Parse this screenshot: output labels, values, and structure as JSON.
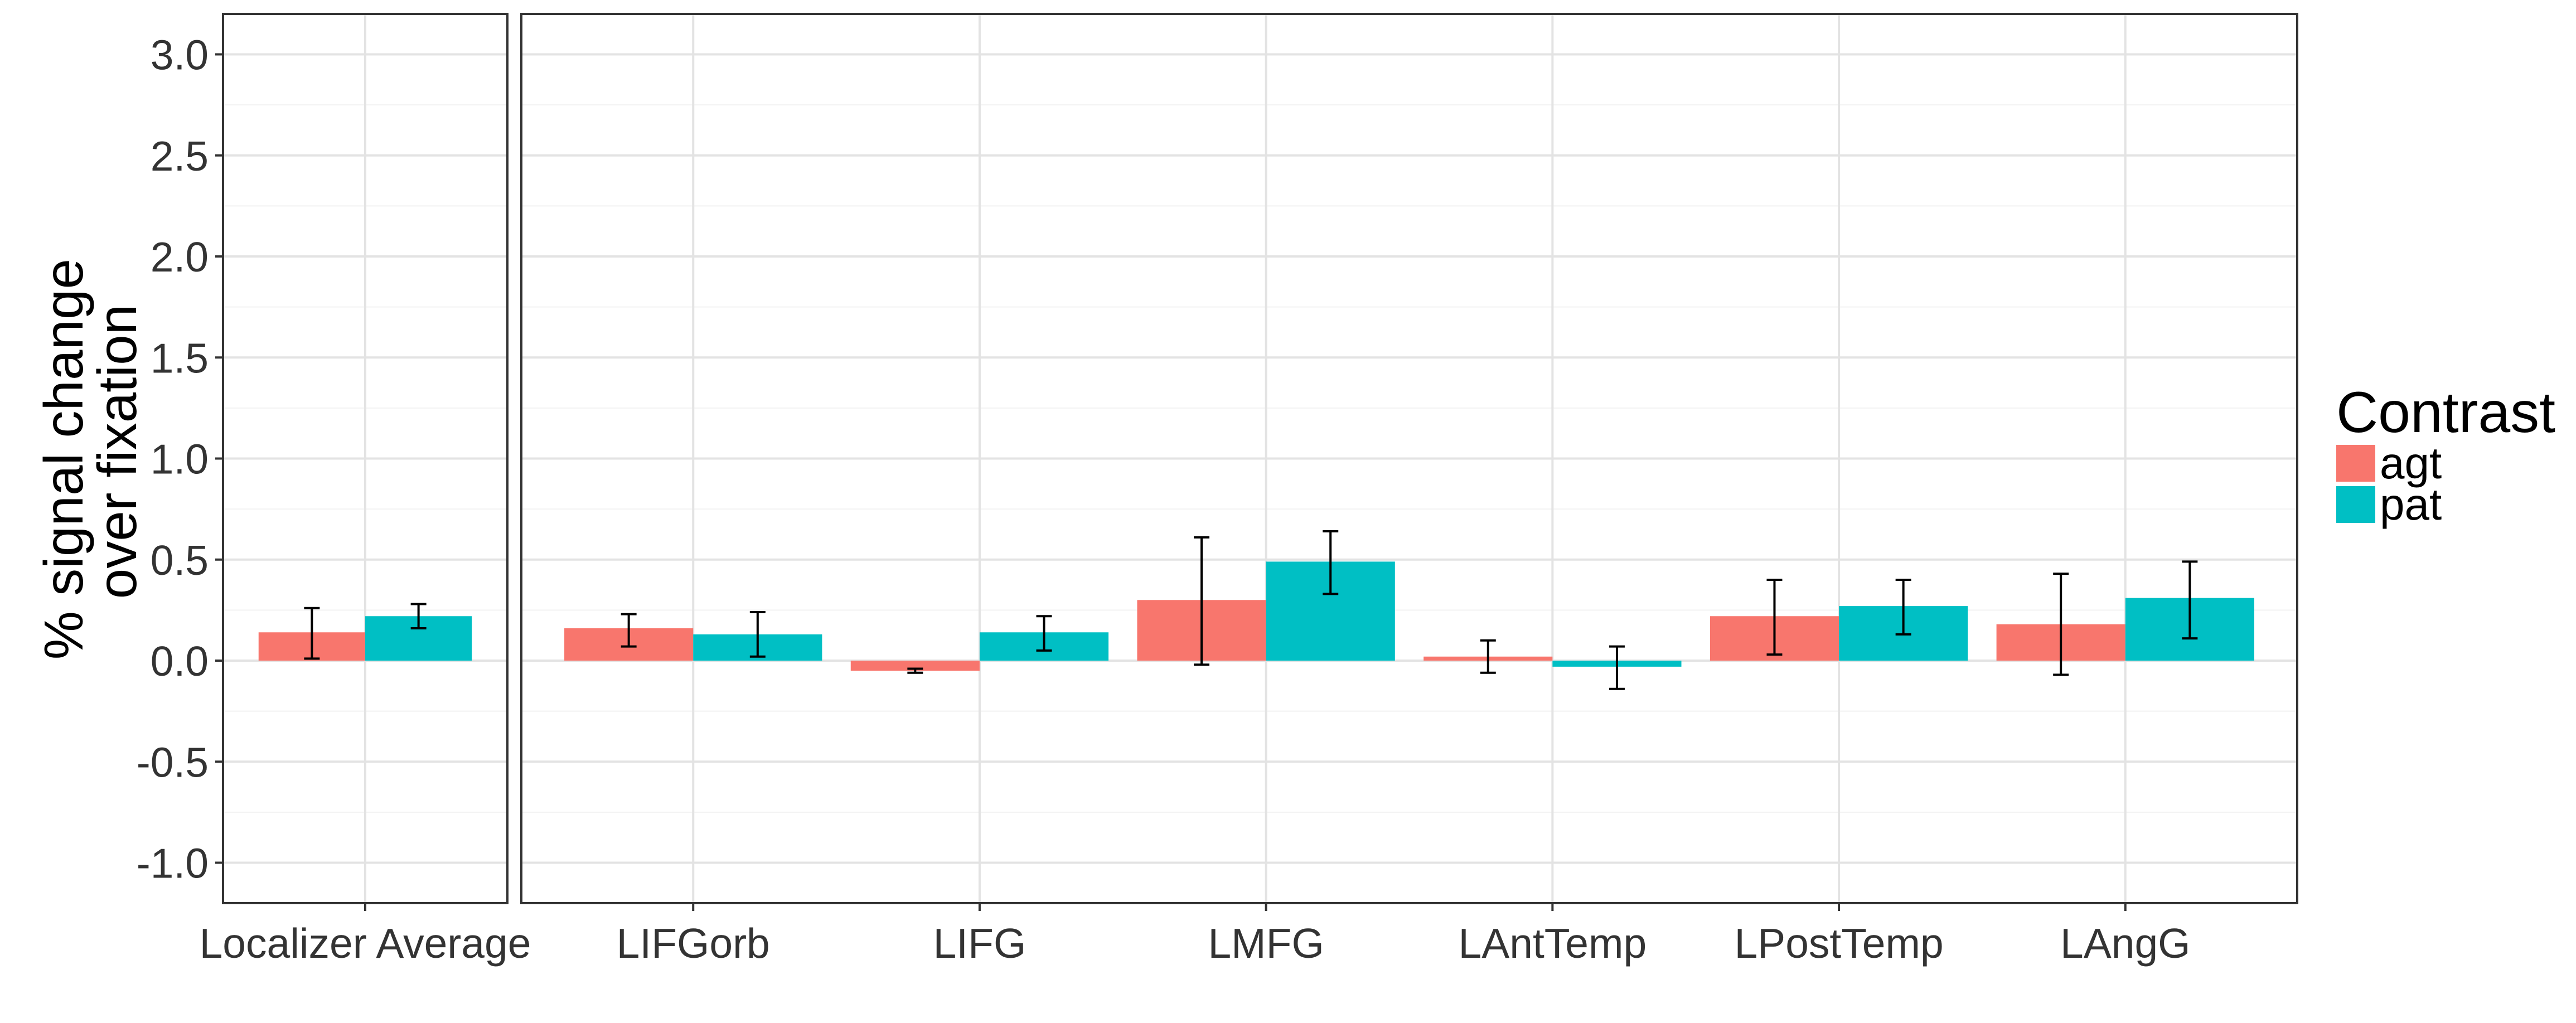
{
  "chart_data": {
    "type": "bar",
    "ylabel_lines": [
      "% signal change",
      "over fixation"
    ],
    "xlabel": "",
    "ylim": [
      -1.2,
      3.2
    ],
    "yticks": [
      "3.0",
      "2.5",
      "2.0",
      "1.5",
      "1.0",
      "0.5",
      "0.0",
      "-0.5",
      "-1.0"
    ],
    "grid": true,
    "legend": {
      "title": "Contrast",
      "position": "right",
      "items": [
        {
          "name": "agt",
          "color": "#F8766D"
        },
        {
          "name": "pat",
          "color": "#00BFC4"
        }
      ]
    },
    "panels": [
      {
        "categories": [
          "Localizer Average"
        ],
        "series": [
          {
            "name": "agt",
            "values": [
              0.14
            ],
            "err_low": [
              0.01
            ],
            "err_high": [
              0.26
            ]
          },
          {
            "name": "pat",
            "values": [
              0.22
            ],
            "err_low": [
              0.16
            ],
            "err_high": [
              0.28
            ]
          }
        ]
      },
      {
        "categories": [
          "LIFGorb",
          "LIFG",
          "LMFG",
          "LAntTemp",
          "LPostTemp",
          "LAngG"
        ],
        "series": [
          {
            "name": "agt",
            "values": [
              0.16,
              -0.05,
              0.3,
              0.02,
              0.22,
              0.18
            ],
            "err_low": [
              0.07,
              -0.06,
              -0.02,
              -0.06,
              0.03,
              -0.07
            ],
            "err_high": [
              0.23,
              -0.04,
              0.61,
              0.1,
              0.4,
              0.43
            ]
          },
          {
            "name": "pat",
            "values": [
              0.13,
              0.14,
              0.49,
              -0.03,
              0.27,
              0.31
            ],
            "err_low": [
              0.02,
              0.05,
              0.33,
              -0.14,
              0.13,
              0.11
            ],
            "err_high": [
              0.24,
              0.22,
              0.64,
              0.07,
              0.4,
              0.49
            ]
          }
        ]
      }
    ]
  }
}
